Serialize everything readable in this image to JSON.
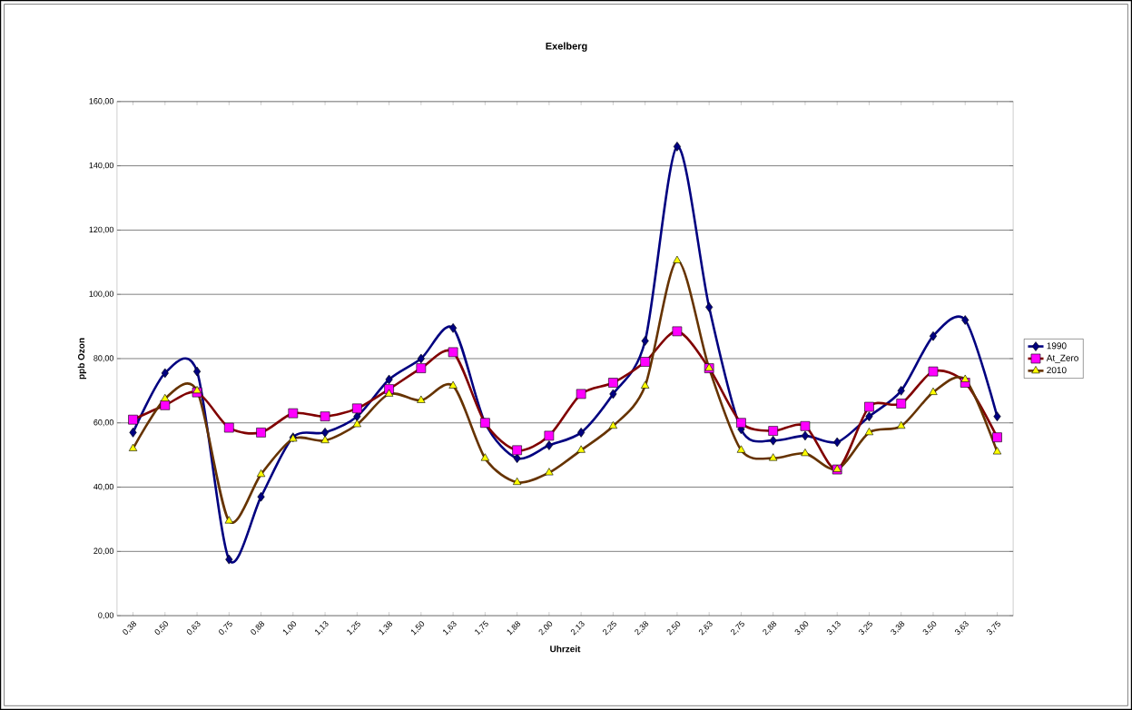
{
  "chart_data": {
    "type": "line",
    "title": "Exelberg",
    "xlabel": "Uhrzeit",
    "ylabel": "ppb Ozon",
    "categories": [
      "0,38",
      "0,50",
      "0,63",
      "0,75",
      "0,88",
      "1,00",
      "1,13",
      "1,25",
      "1,38",
      "1,50",
      "1,63",
      "1,75",
      "1,88",
      "2,00",
      "2,13",
      "2,25",
      "2,38",
      "2,50",
      "2,63",
      "2,75",
      "2,88",
      "3,00",
      "3,13",
      "3,25",
      "3,38",
      "3,50",
      "3,63",
      "3,75"
    ],
    "series": [
      {
        "name": "1990",
        "color": "#000080",
        "marker": "diamond",
        "values": [
          57,
          75.5,
          76,
          17.5,
          37,
          55.5,
          57,
          62,
          73.5,
          80,
          89.5,
          60,
          49,
          53,
          57,
          69,
          85.5,
          146,
          96,
          58,
          54.5,
          56,
          54,
          62,
          70,
          87,
          92,
          62
        ]
      },
      {
        "name": "At_Zero",
        "color": "#800000",
        "marker": "square",
        "values": [
          61,
          65.5,
          69.5,
          58.5,
          57,
          63,
          62,
          64.5,
          70.5,
          77,
          82,
          60,
          51.5,
          56,
          69,
          72.5,
          79,
          88.5,
          77,
          60,
          57.5,
          59,
          45.5,
          65,
          66,
          76,
          72.5,
          55.5
        ]
      },
      {
        "name": "2010",
        "color": "#663300",
        "marker": "triangle",
        "values": [
          52,
          67.5,
          70,
          29.5,
          44,
          55,
          54.5,
          59.5,
          69,
          67,
          71.5,
          49,
          41.5,
          44.5,
          51.5,
          59,
          71.5,
          110.5,
          77,
          51.5,
          49,
          50.5,
          45.5,
          57,
          59,
          69.5,
          73.5,
          51
        ]
      }
    ],
    "ylim": [
      0,
      160
    ],
    "yticks": [
      {
        "value": 0,
        "label": "0,00"
      },
      {
        "value": 20,
        "label": "20,00"
      },
      {
        "value": 40,
        "label": "40,00"
      },
      {
        "value": 60,
        "label": "60,00"
      },
      {
        "value": 80,
        "label": "80,00"
      },
      {
        "value": 100,
        "label": "100,00"
      },
      {
        "value": 120,
        "label": "120,00"
      },
      {
        "value": 140,
        "label": "140,00"
      },
      {
        "value": 160,
        "label": "160,00"
      }
    ],
    "grid": "y",
    "legend": "right",
    "line_style": "solid"
  }
}
